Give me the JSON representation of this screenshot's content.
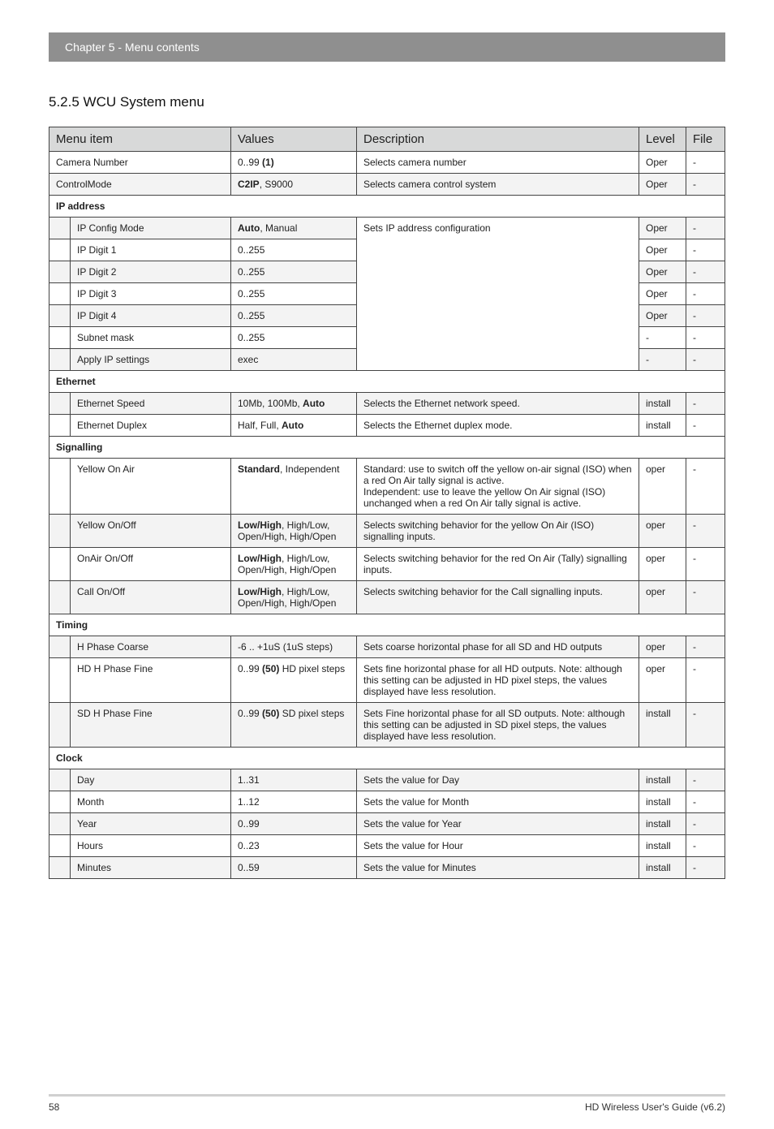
{
  "header": {
    "chapter": "Chapter 5  - Menu contents"
  },
  "section": {
    "number_title": "5.2.5   WCU System menu"
  },
  "table": {
    "headers": {
      "menu_item": "Menu item",
      "values": "Values",
      "description": "Description",
      "level": "Level",
      "file": "File"
    },
    "rows": {
      "camera_number": {
        "item": "Camera Number",
        "values_pre": "0..99 ",
        "values_bold": "(1)",
        "desc": "Selects camera number",
        "level": "Oper",
        "file": "-"
      },
      "control_mode": {
        "item": "ControlMode",
        "values_bold": "C2IP",
        "values_post": ", S9000",
        "desc": "Selects camera control system",
        "level": "Oper",
        "file": "-"
      },
      "ip_address_label": "IP address",
      "ip_config_mode": {
        "item": "IP Config Mode",
        "values_bold": "Auto",
        "values_post": ", Manual",
        "level": "Oper",
        "file": "-"
      },
      "ip_digit_1": {
        "item": "IP Digit 1",
        "values": "0..255",
        "level": "Oper",
        "file": "-"
      },
      "ip_digit_2": {
        "item": "IP Digit 2",
        "values": "0..255",
        "level": "Oper",
        "file": "-"
      },
      "ip_digit_3": {
        "item": "IP Digit 3",
        "values": "0..255",
        "level": "Oper",
        "file": "-"
      },
      "ip_digit_4": {
        "item": "IP Digit 4",
        "values": "0..255",
        "level": "Oper",
        "file": "-"
      },
      "subnet_mask": {
        "item": "Subnet mask",
        "values": "0..255",
        "level": "-",
        "file": "-"
      },
      "apply_ip": {
        "item": "Apply IP settings",
        "values": "exec",
        "level": "-",
        "file": "-"
      },
      "ip_desc": "Sets IP address configuration",
      "ethernet_label": "Ethernet",
      "eth_speed": {
        "item": "Ethernet Speed",
        "values_pre": "10Mb, 100Mb, ",
        "values_bold": "Auto",
        "desc": "Selects the Ethernet network speed.",
        "level": "install",
        "file": "-"
      },
      "eth_duplex": {
        "item": "Ethernet Duplex",
        "values_pre": "Half, Full, ",
        "values_bold": "Auto",
        "desc": "Selects the Ethernet duplex mode.",
        "level": "install",
        "file": "-"
      },
      "signalling_label": "Signalling",
      "yellow_on_air": {
        "item": "Yellow On Air",
        "values_bold": "Standard",
        "values_post": ", Independent",
        "desc": "Standard: use to switch off the yellow on-air signal (ISO) when a red On Air tally signal is active.\nIndependent: use to leave the yellow On Air signal (ISO) unchanged when a red On Air tally signal is active.",
        "level": "oper",
        "file": "-"
      },
      "yellow_on_off": {
        "item": "Yellow On/Off",
        "values_bold": "Low/High",
        "values_post": ", High/Low, Open/High, High/Open",
        "desc": "Selects switching behavior for the yellow On Air (ISO) signalling inputs.",
        "level": "oper",
        "file": "-"
      },
      "onair_on_off": {
        "item": "OnAir On/Off",
        "values_bold": "Low/High",
        "values_post": ", High/Low, Open/High, High/Open",
        "desc": "Selects switching behavior for the red On Air (Tally) signalling inputs.",
        "level": "oper",
        "file": "-"
      },
      "call_on_off": {
        "item": "Call On/Off",
        "values_bold": "Low/High",
        "values_post": ", High/Low, Open/High, High/Open",
        "desc": "Selects switching behavior for the Call signalling inputs.",
        "level": "oper",
        "file": "-"
      },
      "timing_label": "Timing",
      "h_phase_coarse": {
        "item": "H Phase Coarse",
        "values": "-6 .. +1uS (1uS steps)",
        "desc": "Sets coarse horizontal phase for all SD and HD outputs",
        "level": "oper",
        "file": "-"
      },
      "hd_h_phase_fine": {
        "item": "HD H Phase Fine",
        "values_pre": "0..99 ",
        "values_bold": "(50)",
        "values_post": " HD pixel steps",
        "desc": "Sets fine horizontal phase for all HD outputs. Note: although this setting can be adjusted in HD pixel steps, the values displayed have less resolution.",
        "level": "oper",
        "file": "-"
      },
      "sd_h_phase_fine": {
        "item": "SD H Phase Fine",
        "values_pre": "0..99 ",
        "values_bold": "(50)",
        "values_post": " SD pixel steps",
        "desc": "Sets Fine horizontal phase for all SD outputs. Note: although this setting can be adjusted in SD pixel steps, the values displayed have less resolution.",
        "level": "install",
        "file": "-"
      },
      "clock_label": "Clock",
      "day": {
        "item": "Day",
        "values": "1..31",
        "desc": "Sets the value for Day",
        "level": "install",
        "file": "-"
      },
      "month": {
        "item": "Month",
        "values": "1..12",
        "desc": "Sets the value for Month",
        "level": "install",
        "file": "-"
      },
      "year": {
        "item": "Year",
        "values": "0..99",
        "desc": "Sets the value for Year",
        "level": "install",
        "file": "-"
      },
      "hours": {
        "item": "Hours",
        "values": "0..23",
        "desc": "Sets the value for Hour",
        "level": "install",
        "file": "-"
      },
      "minutes": {
        "item": "Minutes",
        "values": "0..59",
        "desc": "Sets the value for Minutes",
        "level": "install",
        "file": "-"
      }
    }
  },
  "footer": {
    "page": "58",
    "doc": "HD Wireless User's Guide (v6.2)"
  },
  "colors": {
    "header_bg": "#8f8f8f",
    "header_fg": "#ffffff",
    "th_bg": "#d8d9d9",
    "alt_bg": "#f3f3f3",
    "border": "#444444"
  }
}
